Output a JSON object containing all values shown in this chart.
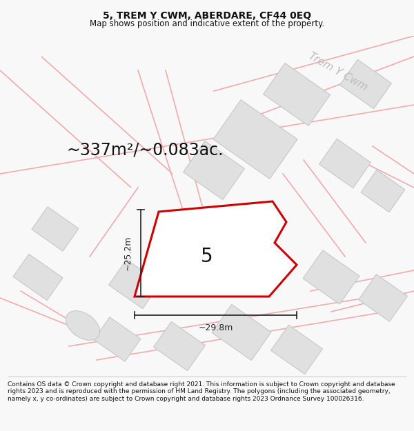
{
  "title": "5, TREM Y CWM, ABERDARE, CF44 0EQ",
  "subtitle": "Map shows position and indicative extent of the property.",
  "footer": "Contains OS data © Crown copyright and database right 2021. This information is subject to Crown copyright and database rights 2023 and is reproduced with the permission of HM Land Registry. The polygons (including the associated geometry, namely x, y co-ordinates) are subject to Crown copyright and database rights 2023 Ordnance Survey 100026316.",
  "area_text": "~337m²/~0.083ac.",
  "street_label": "Trem Y Cwm",
  "plot_number": "5",
  "dim_width": "~29.8m",
  "dim_height": "~25.2m",
  "bg_color": "#f8f8f8",
  "map_bg": "#ffffff",
  "road_color": "#f2aaaa",
  "road_lw": 1.2,
  "building_color": "#e0e0e0",
  "building_edge": "#c8c8c8",
  "plot_outline_color": "#cc0000",
  "plot_fill": "#ffffff",
  "dim_color": "#222222",
  "text_color": "#111111",
  "street_text_color": "#bbbbbb",
  "title_fontsize": 10,
  "subtitle_fontsize": 8.5,
  "area_fontsize": 17,
  "plot_num_fontsize": 20,
  "street_fontsize": 11,
  "dim_fontsize": 9,
  "footer_fontsize": 6.5
}
